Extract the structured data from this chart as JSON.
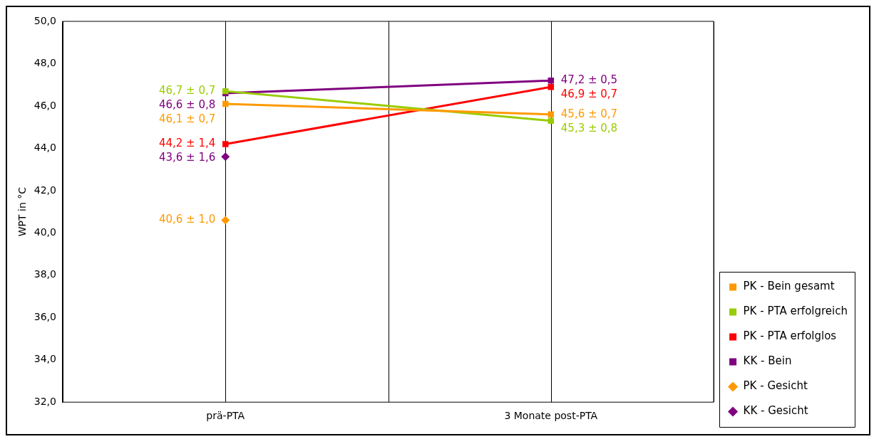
{
  "chart_data": {
    "type": "line",
    "ylabel": "WPT in °C",
    "categories": [
      "prä-PTA",
      "3 Monate post-PTA"
    ],
    "ylim": [
      32,
      50
    ],
    "yticks": [
      {
        "value": 32,
        "label": "32,0"
      },
      {
        "value": 34,
        "label": "34,0"
      },
      {
        "value": 36,
        "label": "36,0"
      },
      {
        "value": 38,
        "label": "38,0"
      },
      {
        "value": 40,
        "label": "40,0"
      },
      {
        "value": 42,
        "label": "42,0"
      },
      {
        "value": 44,
        "label": "44,0"
      },
      {
        "value": 46,
        "label": "46,0"
      },
      {
        "value": 48,
        "label": "48,0"
      },
      {
        "value": 50,
        "label": "50,0"
      }
    ],
    "grid": "x",
    "legend": "right",
    "line_style": "solid",
    "series": [
      {
        "name": "PK - Bein gesamt",
        "color": "#ff9900",
        "marker": "square",
        "values": [
          46.1,
          45.6
        ],
        "value_labels": [
          "46,1 ± 0,7",
          "45,6 ± 0,7"
        ]
      },
      {
        "name": "PK - PTA erfolgreich",
        "color": "#99cc00",
        "marker": "square",
        "values": [
          46.7,
          45.3
        ],
        "value_labels": [
          "46,7 ± 0,7",
          "45,3 ± 0,8"
        ]
      },
      {
        "name": "PK - PTA erfolglos",
        "color": "#ff0000",
        "marker": "square",
        "values": [
          44.2,
          46.9
        ],
        "value_labels": [
          "44,2 ± 1,4",
          "46,9 ± 0,7"
        ]
      },
      {
        "name": "KK - Bein",
        "color": "#800080",
        "marker": "square",
        "values": [
          46.6,
          47.2
        ],
        "value_labels": [
          "46,6 ± 0,8",
          "47,2 ± 0,5"
        ]
      },
      {
        "name": "PK - Gesicht",
        "color": "#ff9900",
        "marker": "diamond",
        "values": [
          40.6,
          null
        ],
        "value_labels": [
          "40,6 ± 1,0",
          null
        ]
      },
      {
        "name": "KK - Gesicht",
        "color": "#800080",
        "marker": "diamond",
        "values": [
          43.6,
          null
        ],
        "value_labels": [
          "43,6 ± 1,6",
          null
        ]
      }
    ]
  }
}
